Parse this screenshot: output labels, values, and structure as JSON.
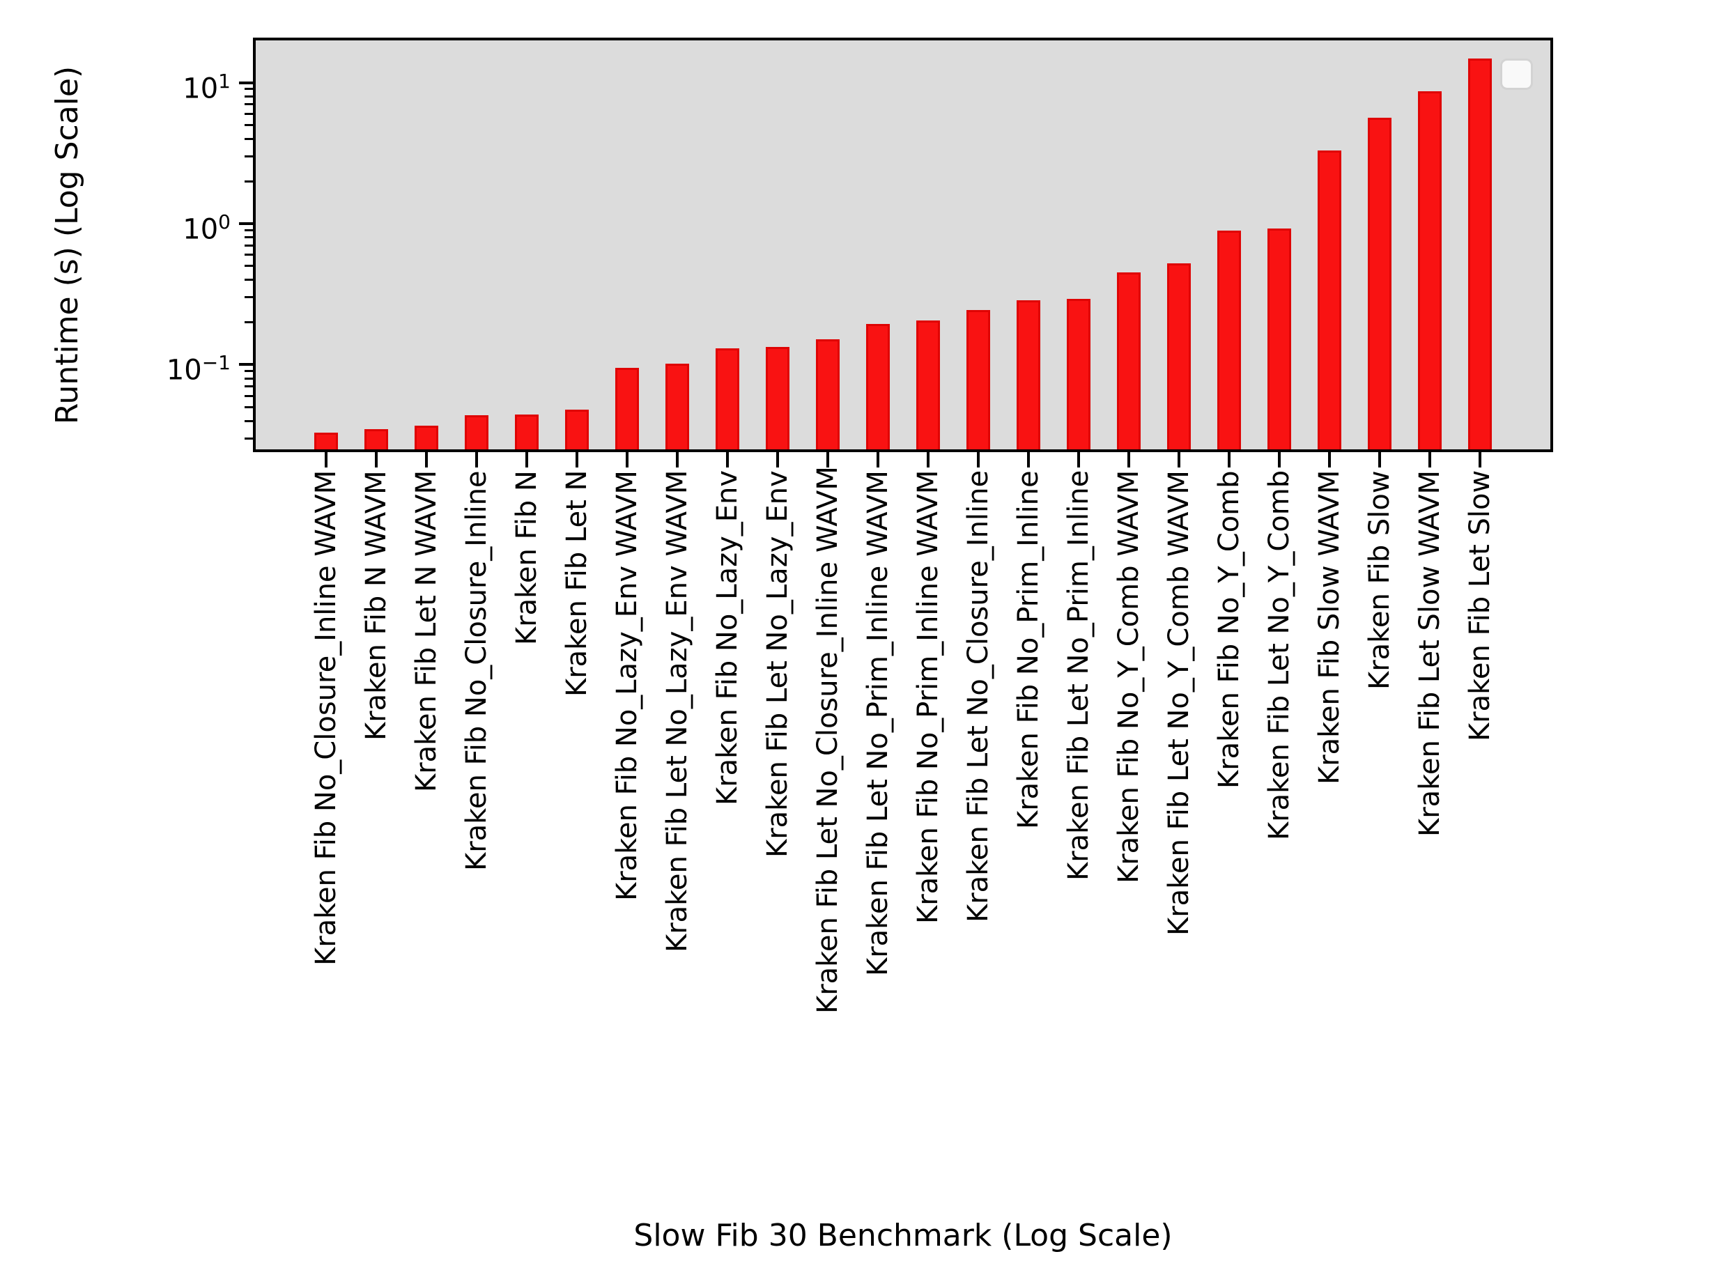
{
  "chart_data": {
    "type": "bar",
    "title": "",
    "xlabel": "Slow Fib 30 Benchmark (Log Scale)",
    "ylabel": "Runtime (s) (Log Scale)",
    "yscale": "log",
    "ylim": [
      0.0251,
      19.9
    ],
    "grid": false,
    "legend": {
      "present": true,
      "entries": [],
      "position": "upper right"
    },
    "categories": [
      "Kraken Fib No_Closure_Inline WAVM",
      "Kraken Fib N WAVM",
      "Kraken Fib Let N WAVM",
      "Kraken Fib No_Closure_Inline",
      "Kraken Fib N",
      "Kraken Fib Let N",
      "Kraken Fib No_Lazy_Env WAVM",
      "Kraken Fib Let No_Lazy_Env WAVM",
      "Kraken Fib No_Lazy_Env",
      "Kraken Fib Let No_Lazy_Env",
      "Kraken Fib Let No_Closure_Inline WAVM",
      "Kraken Fib Let No_Prim_Inline WAVM",
      "Kraken Fib No_Prim_Inline WAVM",
      "Kraken Fib Let No_Closure_Inline",
      "Kraken Fib No_Prim_Inline",
      "Kraken Fib Let No_Prim_Inline",
      "Kraken Fib No_Y_Comb WAVM",
      "Kraken Fib Let No_Y_Comb WAVM",
      "Kraken Fib No_Y_Comb",
      "Kraken Fib Let No_Y_Comb",
      "Kraken Fib Slow WAVM",
      "Kraken Fib Slow",
      "Kraken Fib Let Slow WAVM",
      "Kraken Fib Let Slow"
    ],
    "values": [
      0.033,
      0.035,
      0.037,
      0.044,
      0.0445,
      0.048,
      0.095,
      0.102,
      0.131,
      0.133,
      0.152,
      0.195,
      0.205,
      0.245,
      0.285,
      0.292,
      0.45,
      0.52,
      0.89,
      0.92,
      3.3,
      5.6,
      8.7,
      14.8
    ],
    "y_major_ticks": [
      {
        "base": "10",
        "exp": "1",
        "value": 10
      },
      {
        "base": "10",
        "exp": "0",
        "value": 1
      },
      {
        "base": "10",
        "exp": "−1",
        "value": 0.1
      }
    ],
    "y_minor_tick_values": [
      0.03,
      0.04,
      0.05,
      0.06,
      0.07,
      0.08,
      0.09,
      0.2,
      0.3,
      0.4,
      0.5,
      0.6,
      0.7,
      0.8,
      0.9,
      2,
      3,
      4,
      5,
      6,
      7,
      8,
      9
    ],
    "colors": {
      "bar_fill": "#f91212",
      "bar_edge": "#df0404",
      "plot_background": "#dcdcdc",
      "spine": "#000000",
      "figure_background": "#ffffff",
      "legend_fill": "#f9f9f9",
      "legend_border": "#d3d3d3"
    }
  }
}
